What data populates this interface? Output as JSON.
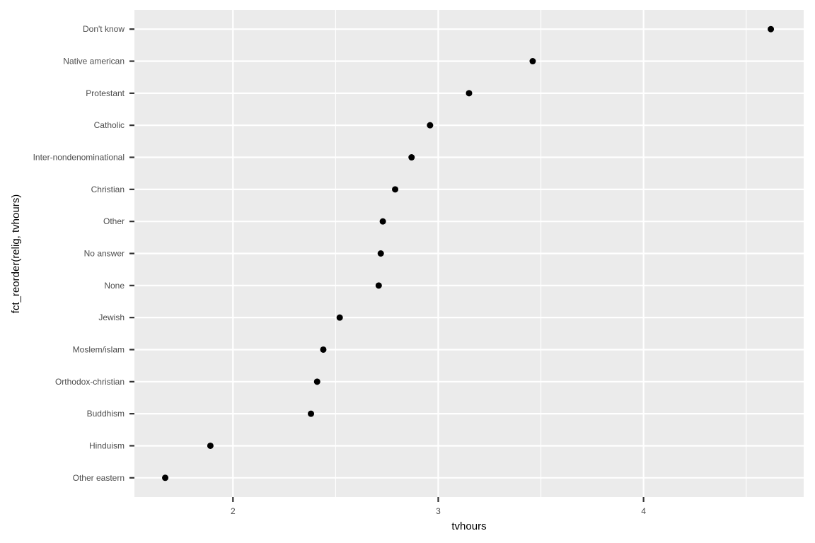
{
  "chart_data": {
    "type": "scatter",
    "title": "",
    "xlabel": "tvhours",
    "ylabel": "fct_reorder(relig, tvhours)",
    "xlim": [
      1.52,
      4.78
    ],
    "x_ticks": [
      2,
      3,
      4
    ],
    "x_tick_labels": [
      "2",
      "3",
      "4"
    ],
    "x_minor_ticks": [
      1.5,
      2.5,
      3.5,
      4.5
    ],
    "grid": true,
    "legend": "none",
    "colors": {
      "panel": "#ebebeb",
      "grid": "#ffffff",
      "point": "#000000",
      "tick": "#333333",
      "tick_label": "#4d4d4d"
    },
    "categories": [
      "Other eastern",
      "Hinduism",
      "Buddhism",
      "Orthodox-christian",
      "Moslem/islam",
      "Jewish",
      "None",
      "No answer",
      "Other",
      "Christian",
      "Inter-nondenominational",
      "Catholic",
      "Protestant",
      "Native american",
      "Don't know"
    ],
    "values": [
      1.67,
      1.89,
      2.38,
      2.41,
      2.44,
      2.52,
      2.71,
      2.72,
      2.73,
      2.79,
      2.87,
      2.96,
      3.15,
      3.46,
      4.62
    ]
  }
}
